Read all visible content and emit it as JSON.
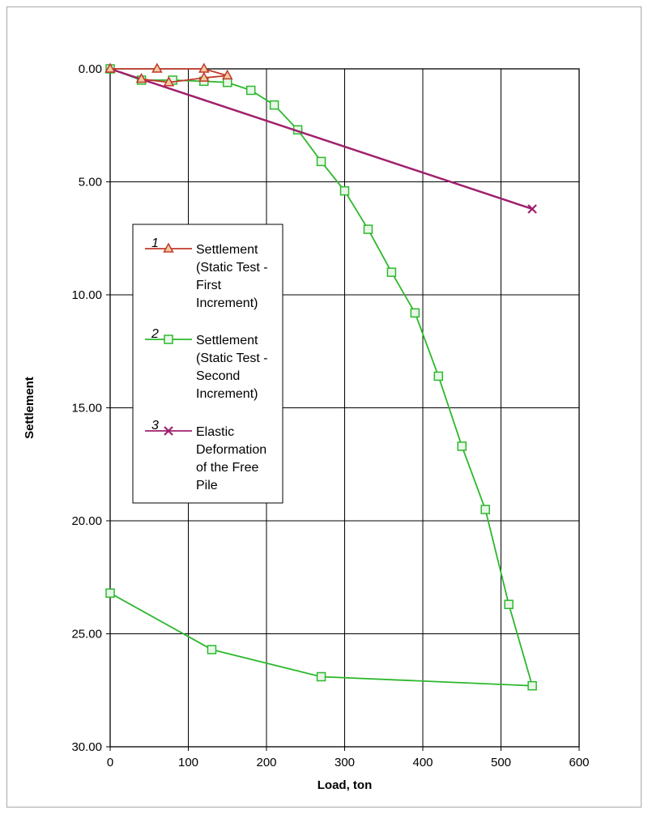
{
  "chart_data": {
    "type": "line",
    "title": "",
    "xlabel": "Load, ton",
    "ylabel": "Settlement",
    "xlim": [
      0,
      600
    ],
    "ylim": [
      0,
      30
    ],
    "y_inverted": true,
    "grid": true,
    "x_ticks": [
      "0",
      "100",
      "200",
      "300",
      "400",
      "500",
      "600"
    ],
    "y_ticks": [
      "0.00",
      "5.00",
      "10.00",
      "15.00",
      "20.00",
      "25.00",
      "30.00"
    ],
    "legend_position": "left-middle",
    "series": [
      {
        "name": "Settlement (Static Test - First Increment)",
        "legend_number": "1",
        "legend_lines": [
          "Settlement",
          "(Static Test  -",
          "First",
          "Increment)"
        ],
        "color": "#c0392b",
        "marker": "triangle",
        "points": [
          [
            0,
            0.0
          ],
          [
            60,
            0.0
          ],
          [
            120,
            0.0
          ],
          [
            150,
            0.3
          ],
          [
            120,
            0.4
          ],
          [
            75,
            0.6
          ],
          [
            40,
            0.45
          ]
        ]
      },
      {
        "name": "Settlement (Static Test - Second Increment)",
        "legend_number": "2",
        "legend_lines": [
          "Settlement",
          "(Static Test  -",
          "Second",
          "Increment)"
        ],
        "color": "#2db82d",
        "marker": "square",
        "points": [
          [
            0,
            0.0
          ],
          [
            40,
            0.5
          ],
          [
            80,
            0.5
          ],
          [
            120,
            0.55
          ],
          [
            150,
            0.6
          ],
          [
            180,
            0.95
          ],
          [
            210,
            1.6
          ],
          [
            240,
            2.7
          ],
          [
            270,
            4.1
          ],
          [
            300,
            5.4
          ],
          [
            330,
            7.1
          ],
          [
            360,
            9.0
          ],
          [
            390,
            10.8
          ],
          [
            420,
            13.6
          ],
          [
            450,
            16.7
          ],
          [
            480,
            19.5
          ],
          [
            510,
            23.7
          ],
          [
            540,
            27.3
          ],
          [
            270,
            26.9
          ],
          [
            130,
            25.7
          ],
          [
            0,
            23.2
          ]
        ]
      },
      {
        "name": "Elastic Deformation of the Free Pile",
        "legend_number": "3",
        "legend_lines": [
          "Elastic",
          "Deformation",
          "of the Free",
          "Pile"
        ],
        "color": "#a0206e",
        "marker": "x",
        "points": [
          [
            0,
            0.0
          ],
          [
            540,
            6.2
          ]
        ]
      }
    ]
  }
}
